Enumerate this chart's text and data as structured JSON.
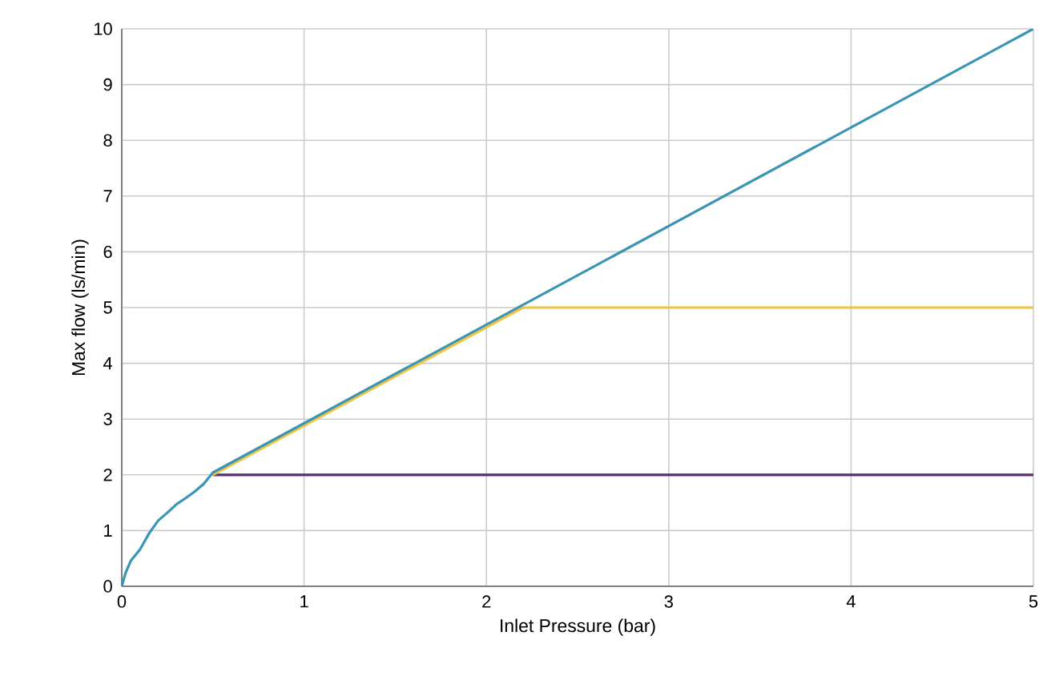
{
  "chart_data": {
    "type": "line",
    "xlabel": "Inlet Pressure (bar)",
    "ylabel": "Max flow (ls/min)",
    "xlim": [
      0,
      5
    ],
    "ylim": [
      0,
      10
    ],
    "xticks": [
      0,
      1,
      2,
      3,
      4,
      5
    ],
    "yticks": [
      0,
      1,
      2,
      3,
      4,
      5,
      6,
      7,
      8,
      9,
      10
    ],
    "grid": true,
    "marker": "none",
    "line_style": "solid",
    "series": [
      {
        "color": "#5a2d6e",
        "x": [
          0.5,
          5
        ],
        "values": [
          2,
          2
        ]
      },
      {
        "color": "#f2c440",
        "x": [
          0.5,
          2.2,
          5
        ],
        "values": [
          2,
          5,
          5
        ]
      },
      {
        "color": "#3a95b5",
        "x": [
          0,
          0.02,
          0.05,
          0.1,
          0.15,
          0.2,
          0.25,
          0.3,
          0.35,
          0.4,
          0.45,
          0.5,
          5
        ],
        "values": [
          0,
          0.23,
          0.46,
          0.66,
          0.95,
          1.18,
          1.32,
          1.47,
          1.58,
          1.7,
          1.84,
          2.04,
          10
        ]
      }
    ]
  }
}
